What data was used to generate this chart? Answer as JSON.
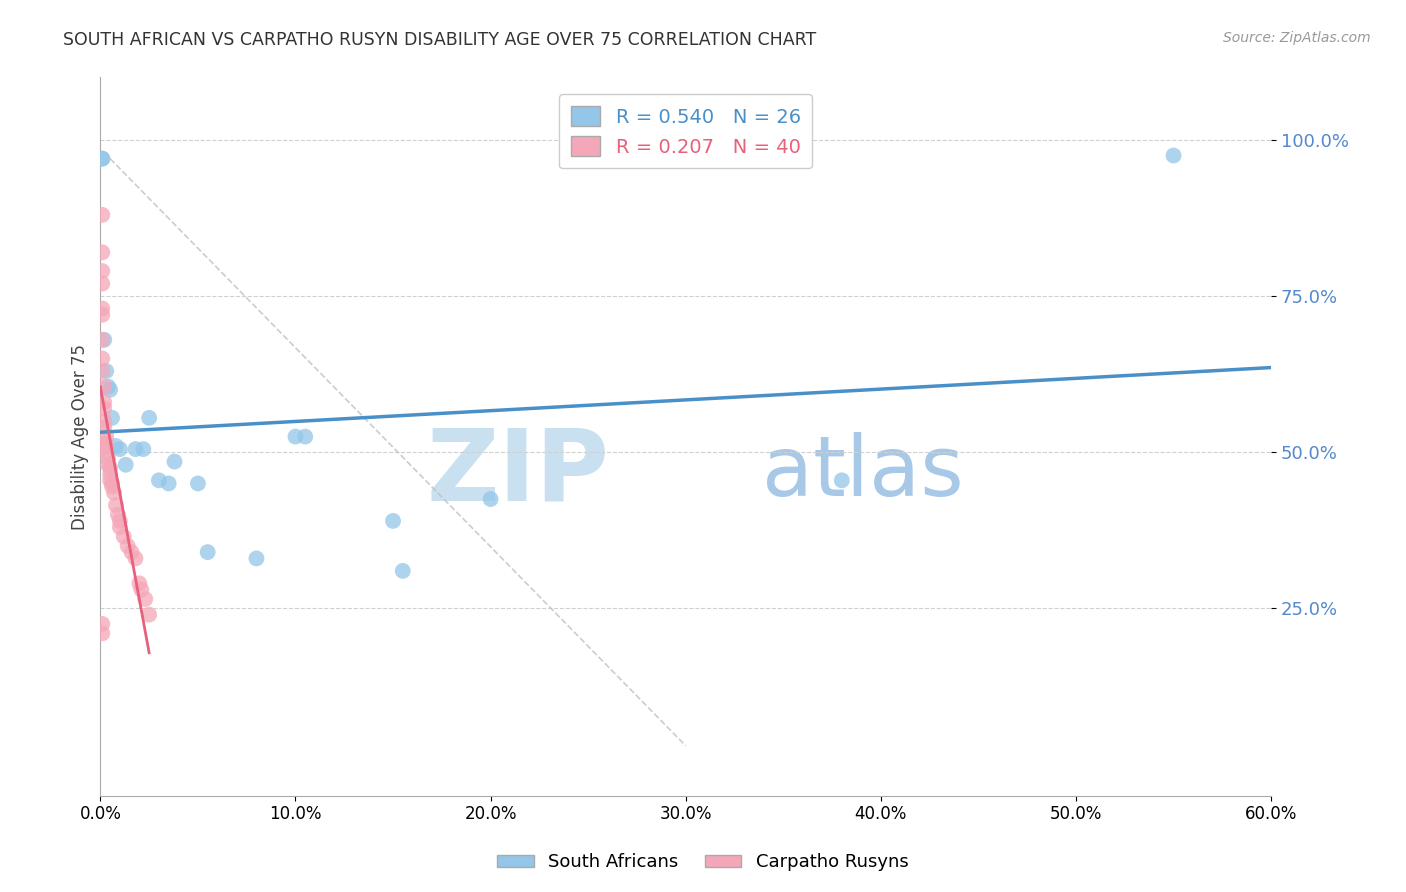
{
  "title": "SOUTH AFRICAN VS CARPATHO RUSYN DISABILITY AGE OVER 75 CORRELATION CHART",
  "source": "Source: ZipAtlas.com",
  "ylabel": "Disability Age Over 75",
  "legend_label1": "South Africans",
  "legend_label2": "Carpatho Rusyns",
  "r1": 0.54,
  "n1": 26,
  "r2": 0.207,
  "n2": 40,
  "color1": "#93c6e8",
  "color2": "#f4a7b8",
  "line_color1": "#4a90c8",
  "line_color2": "#e8607a",
  "xlim": [
    0.0,
    0.6
  ],
  "ylim": [
    -0.05,
    1.1
  ],
  "yticks": [
    0.25,
    0.5,
    0.75,
    1.0
  ],
  "xticks": [
    0.0,
    0.1,
    0.2,
    0.3,
    0.4,
    0.5,
    0.6
  ],
  "blue_x": [
    0.001,
    0.001,
    0.002,
    0.003,
    0.004,
    0.005,
    0.006,
    0.008,
    0.01,
    0.013,
    0.018,
    0.022,
    0.025,
    0.03,
    0.035,
    0.038,
    0.05,
    0.055,
    0.08,
    0.1,
    0.105,
    0.15,
    0.155,
    0.2,
    0.38,
    0.55
  ],
  "blue_y": [
    0.97,
    0.97,
    0.68,
    0.63,
    0.605,
    0.6,
    0.555,
    0.51,
    0.505,
    0.48,
    0.505,
    0.505,
    0.555,
    0.455,
    0.45,
    0.485,
    0.45,
    0.34,
    0.33,
    0.525,
    0.525,
    0.39,
    0.31,
    0.425,
    0.455,
    0.975
  ],
  "pink_x": [
    0.001,
    0.001,
    0.001,
    0.001,
    0.001,
    0.001,
    0.001,
    0.001,
    0.001,
    0.002,
    0.002,
    0.002,
    0.002,
    0.002,
    0.003,
    0.003,
    0.003,
    0.003,
    0.004,
    0.004,
    0.005,
    0.005,
    0.005,
    0.006,
    0.006,
    0.007,
    0.008,
    0.009,
    0.01,
    0.01,
    0.012,
    0.014,
    0.016,
    0.018,
    0.02,
    0.021,
    0.023,
    0.025,
    0.001,
    0.001
  ],
  "pink_y": [
    0.88,
    0.82,
    0.79,
    0.77,
    0.73,
    0.72,
    0.68,
    0.65,
    0.63,
    0.605,
    0.58,
    0.57,
    0.55,
    0.54,
    0.525,
    0.515,
    0.51,
    0.5,
    0.49,
    0.48,
    0.475,
    0.465,
    0.455,
    0.45,
    0.445,
    0.435,
    0.415,
    0.4,
    0.39,
    0.38,
    0.365,
    0.35,
    0.34,
    0.33,
    0.29,
    0.28,
    0.265,
    0.24,
    0.225,
    0.21
  ],
  "watermark_zip": "ZIP",
  "watermark_atlas": "atlas",
  "watermark_color": "#cce5f5",
  "background_color": "#ffffff",
  "grid_color": "#d0d0d0",
  "ref_line_color": "#c0c0c0",
  "tick_color": "#5588cc",
  "axis_color": "#aaaaaa"
}
